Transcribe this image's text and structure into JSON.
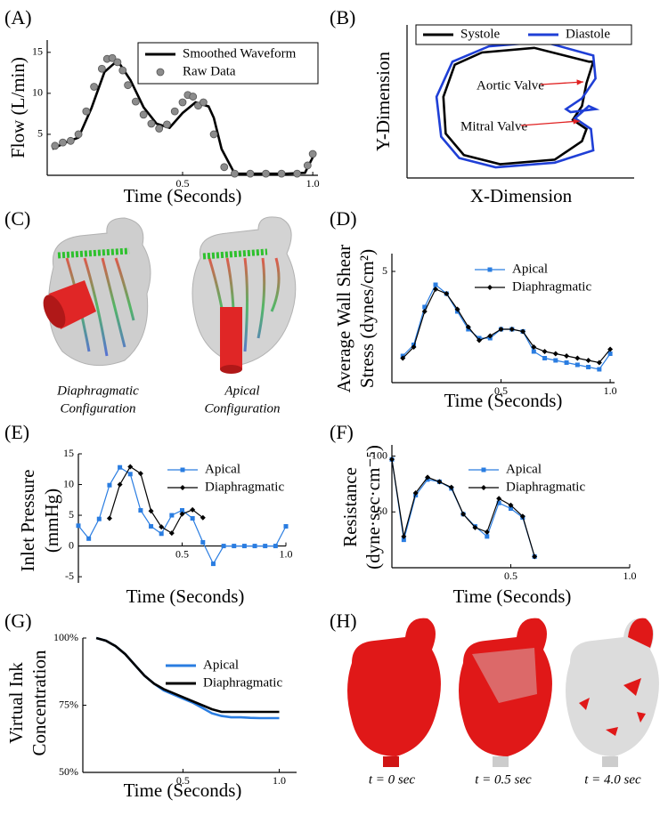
{
  "chart_data": [
    {
      "type": "line",
      "panel_label": "(A)",
      "x_label": "Time (Seconds)",
      "y_label": [
        "Flow (L/min)"
      ],
      "xlim": [
        -0.02,
        1.02
      ],
      "ylim": [
        0,
        16.5
      ],
      "xticks": [
        0.5,
        {
          "value": 1,
          "label": "1.0"
        }
      ],
      "yticks": [
        5,
        10,
        15
      ],
      "legend": "top-right",
      "legend_frame": true,
      "series": [
        {
          "name": "Smoothed Waveform",
          "color": "#000000",
          "marker": null,
          "x": [
            0,
            0.05,
            0.1,
            0.15,
            0.2,
            0.25,
            0.3,
            0.35,
            0.4,
            0.45,
            0.5,
            0.55,
            0.6,
            0.62,
            0.65,
            0.7,
            0.8,
            0.9,
            0.97,
            1.0
          ],
          "values": [
            3.2,
            4.0,
            4.6,
            8.2,
            12.6,
            14.0,
            11.6,
            8.3,
            6.3,
            5.8,
            7.6,
            8.9,
            8.4,
            7.0,
            3.2,
            0.2,
            0.2,
            0.2,
            0.3,
            2.2
          ]
        },
        {
          "name": "Raw Data",
          "color": "#8c8c8c",
          "marker": "circle",
          "line": false,
          "x": [
            0.01,
            0.04,
            0.07,
            0.1,
            0.13,
            0.16,
            0.19,
            0.21,
            0.23,
            0.25,
            0.27,
            0.29,
            0.32,
            0.35,
            0.38,
            0.41,
            0.44,
            0.47,
            0.5,
            0.52,
            0.54,
            0.56,
            0.58,
            0.62,
            0.66,
            0.7,
            0.76,
            0.82,
            0.88,
            0.94,
            0.98,
            1.0
          ],
          "values": [
            3.6,
            4.0,
            4.2,
            5.0,
            7.8,
            10.8,
            13.0,
            14.2,
            14.3,
            13.8,
            12.8,
            11.0,
            9.0,
            7.4,
            6.3,
            5.7,
            6.2,
            7.8,
            8.9,
            9.8,
            9.6,
            8.5,
            8.9,
            5.0,
            1.0,
            0.2,
            0.2,
            0.2,
            0.2,
            0.2,
            1.2,
            2.6
          ]
        }
      ]
    },
    {
      "type": "line",
      "panel_label": "(B)",
      "x_label": "X-Dimension",
      "y_label": [
        "Y-Dimension"
      ],
      "xlim": [
        0,
        10
      ],
      "ylim": [
        0,
        10
      ],
      "closed": true,
      "legend": "top",
      "legend_frame": true,
      "annotations": [
        "Aortic Valve",
        "Mitral Valve"
      ],
      "annotation_color": "#e02020",
      "series": [
        {
          "name": "Systole",
          "color": "#000000",
          "marker": null,
          "x": [
            8.0,
            5.6,
            3.3,
            2.1,
            1.6,
            1.7,
            2.5,
            4.1,
            6.5,
            7.7,
            7.9,
            7.3,
            7.7,
            7.9,
            8.2
          ],
          "values": [
            7.6,
            8.5,
            8.2,
            7.4,
            5.3,
            2.9,
            1.5,
            0.9,
            1.2,
            2.4,
            3.2,
            3.8,
            4.7,
            6.2,
            7.6
          ]
        },
        {
          "name": "Diastole",
          "color": "#1f3fd6",
          "marker": null,
          "x": [
            8.2,
            6.0,
            3.6,
            2.0,
            1.3,
            1.5,
            2.3,
            3.9,
            6.5,
            8.2,
            8.1,
            7.4,
            8.0,
            8.3,
            7.2,
            7.0,
            7.7,
            8.3,
            8.2
          ],
          "values": [
            8.0,
            8.9,
            8.6,
            7.6,
            5.3,
            2.7,
            1.3,
            0.7,
            1.0,
            1.8,
            3.2,
            3.9,
            4.7,
            4.5,
            4.3,
            4.5,
            5.2,
            6.5,
            8.0
          ]
        }
      ]
    },
    {
      "type": "line",
      "panel_label": "(D)",
      "x_label": "Time (Seconds)",
      "y_label": [
        "Average Wall Shear",
        "Stress (dynes/cm²)"
      ],
      "xlim": [
        0,
        1.02
      ],
      "ylim": [
        0,
        5.8
      ],
      "xticks": [
        0.5,
        {
          "value": 1,
          "label": "1.0"
        }
      ],
      "yticks": [
        5
      ],
      "legend": "top-right",
      "series": [
        {
          "name": "Apical",
          "color": "#2a7de1",
          "marker": "square",
          "x": [
            0.05,
            0.1,
            0.15,
            0.2,
            0.25,
            0.3,
            0.35,
            0.4,
            0.45,
            0.5,
            0.55,
            0.6,
            0.65,
            0.7,
            0.75,
            0.8,
            0.85,
            0.9,
            0.95,
            1.0
          ],
          "values": [
            1.2,
            1.7,
            3.4,
            4.4,
            4.0,
            3.2,
            2.4,
            2.0,
            2.0,
            2.4,
            2.4,
            2.3,
            1.4,
            1.1,
            1.0,
            0.9,
            0.8,
            0.7,
            0.6,
            1.3
          ]
        },
        {
          "name": "Diaphragmatic",
          "color": "#000000",
          "marker": "diamond",
          "x": [
            0.05,
            0.1,
            0.15,
            0.2,
            0.25,
            0.3,
            0.35,
            0.4,
            0.45,
            0.5,
            0.55,
            0.6,
            0.65,
            0.7,
            0.75,
            0.8,
            0.85,
            0.9,
            0.95,
            1.0
          ],
          "values": [
            1.1,
            1.6,
            3.2,
            4.2,
            4.0,
            3.3,
            2.5,
            1.9,
            2.1,
            2.4,
            2.4,
            2.3,
            1.6,
            1.4,
            1.3,
            1.2,
            1.1,
            1.0,
            0.9,
            1.5
          ]
        }
      ]
    },
    {
      "type": "line",
      "panel_label": "(E)",
      "x_label": "Time (Seconds)",
      "y_label": [
        "Inlet Pressure",
        "(mmHg)"
      ],
      "xlim": [
        0,
        1
      ],
      "ylim": [
        -6,
        15
      ],
      "xticks": [
        0.5,
        {
          "value": 1,
          "label": "1.0"
        }
      ],
      "yticks": [
        -5,
        0,
        5,
        10,
        15
      ],
      "legend": "top-right",
      "series": [
        {
          "name": "Apical",
          "color": "#2a7de1",
          "marker": "square",
          "x": [
            0,
            0.05,
            0.1,
            0.15,
            0.2,
            0.25,
            0.3,
            0.35,
            0.4,
            0.45,
            0.5,
            0.55,
            0.6,
            0.65,
            0.7,
            0.75,
            0.8,
            0.85,
            0.9,
            0.95,
            1.0
          ],
          "values": [
            3.3,
            1.2,
            4.4,
            9.9,
            12.8,
            11.7,
            5.8,
            3.2,
            2.0,
            5.0,
            5.8,
            4.5,
            0.6,
            -2.9,
            0,
            0,
            0,
            0,
            0,
            0,
            3.2
          ]
        },
        {
          "name": "Diaphragmatic",
          "color": "#000000",
          "marker": "diamond",
          "x": [
            0.15,
            0.2,
            0.25,
            0.3,
            0.35,
            0.4,
            0.45,
            0.5,
            0.55,
            0.6
          ],
          "values": [
            4.5,
            10.0,
            12.9,
            11.8,
            5.7,
            3.1,
            2.1,
            5.2,
            5.9,
            4.6
          ]
        }
      ]
    },
    {
      "type": "line",
      "panel_label": "(F)",
      "x_label": "Time (Seconds)",
      "y_label": [
        "Resistance",
        "(dyne·sec·cm⁻⁵)"
      ],
      "xlim": [
        0,
        1
      ],
      "ylim": [
        0,
        110
      ],
      "xticks": [
        0.5,
        {
          "value": 1,
          "label": "1.0"
        }
      ],
      "yticks": [
        50,
        100
      ],
      "legend": "top-right",
      "series": [
        {
          "name": "Apical",
          "color": "#2a7de1",
          "marker": "square",
          "x": [
            0,
            0.05,
            0.1,
            0.15,
            0.2,
            0.25,
            0.3,
            0.35,
            0.4,
            0.45,
            0.5,
            0.55,
            0.6
          ],
          "values": [
            97,
            25,
            65,
            79,
            77,
            71,
            48,
            37,
            28,
            58,
            53,
            45,
            10
          ]
        },
        {
          "name": "Diaphragmatic",
          "color": "#000000",
          "marker": "diamond",
          "x": [
            0,
            0.05,
            0.1,
            0.15,
            0.2,
            0.25,
            0.3,
            0.35,
            0.4,
            0.45,
            0.5,
            0.55,
            0.6
          ],
          "values": [
            97,
            28,
            67,
            81,
            77,
            72,
            48,
            36,
            32,
            62,
            56,
            46,
            10
          ]
        }
      ]
    },
    {
      "type": "line",
      "panel_label": "(G)",
      "x_label": "Time (Seconds)",
      "y_label": [
        "Virtual Ink",
        "Concentration"
      ],
      "xlim": [
        -0.02,
        1.09
      ],
      "ylim": [
        50,
        100
      ],
      "xticks": [
        0.5,
        {
          "value": 1,
          "label": "1.0"
        }
      ],
      "yticks": [
        {
          "value": 50,
          "label": "50%"
        },
        {
          "value": 75,
          "label": "75%"
        },
        {
          "value": 100,
          "label": "100%"
        }
      ],
      "legend": "top-right",
      "series": [
        {
          "name": "Apical",
          "color": "#2a7de1",
          "marker": null,
          "x": [
            0.05,
            0.1,
            0.15,
            0.2,
            0.25,
            0.3,
            0.35,
            0.4,
            0.45,
            0.5,
            0.55,
            0.6,
            0.65,
            0.7,
            0.75,
            0.8,
            0.85,
            0.9,
            0.95,
            1.0
          ],
          "values": [
            100,
            99,
            97,
            94,
            90,
            86,
            83,
            80.5,
            79,
            77.5,
            76,
            74,
            72,
            71,
            70.5,
            70.5,
            70.3,
            70.2,
            70.2,
            70.2
          ]
        },
        {
          "name": "Diaphragmatic",
          "color": "#000000",
          "marker": null,
          "x": [
            0.05,
            0.1,
            0.15,
            0.2,
            0.25,
            0.3,
            0.35,
            0.4,
            0.45,
            0.5,
            0.55,
            0.6,
            0.65,
            0.7,
            0.75,
            0.8,
            0.85,
            0.9,
            0.95,
            1.0
          ],
          "values": [
            100,
            99,
            97,
            94,
            90,
            86,
            83,
            81,
            79.5,
            78,
            76.5,
            75,
            73.5,
            72.5,
            72.5,
            72.5,
            72.5,
            72.5,
            72.5,
            72.5
          ]
        }
      ]
    }
  ],
  "images": {
    "C": {
      "panel_label": "(C)",
      "captions": [
        [
          "Diaphragmatic",
          "Configuration"
        ],
        [
          "Apical",
          "Configuration"
        ]
      ]
    },
    "H": {
      "panel_label": "(H)",
      "captions": [
        "t = 0 sec",
        "t = 0.5 sec",
        "t = 4.0 sec"
      ]
    }
  }
}
